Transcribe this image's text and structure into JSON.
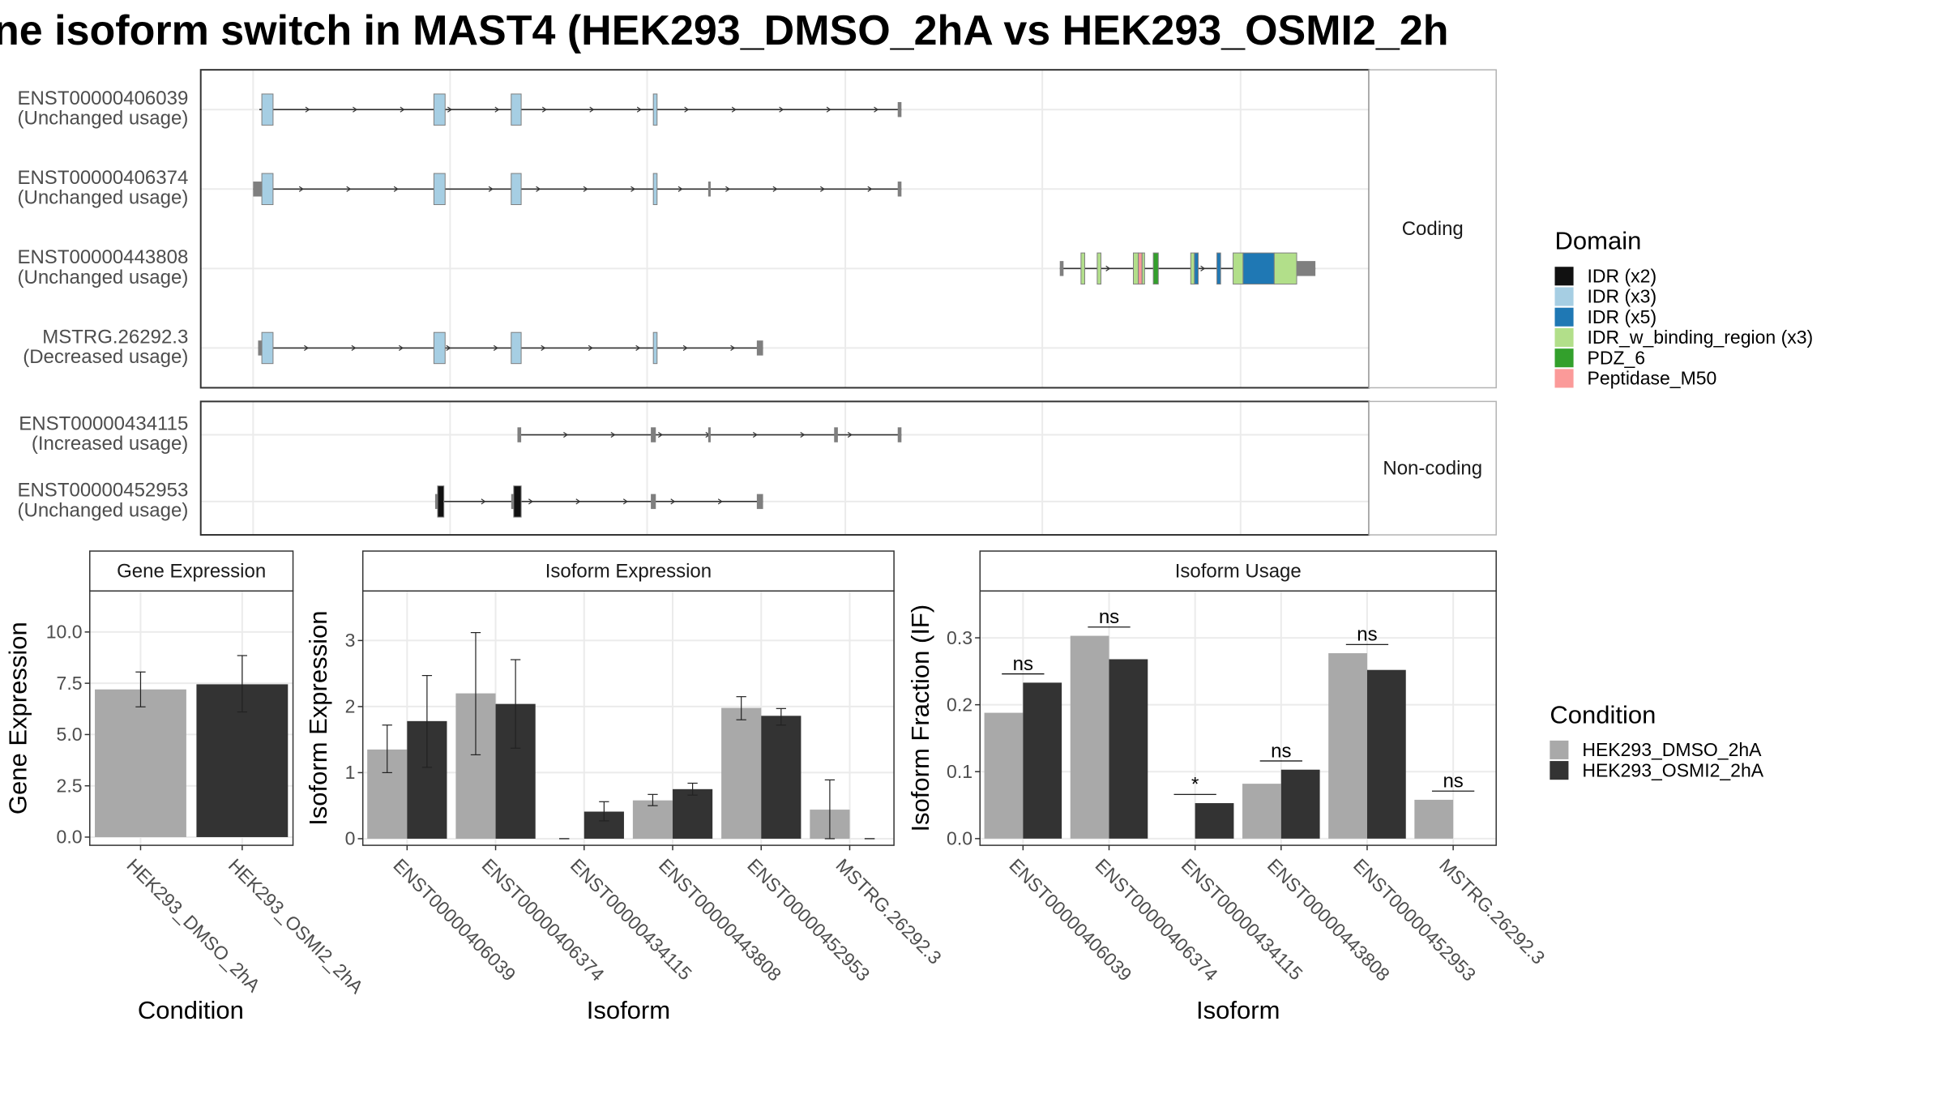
{
  "title": "ne isoform switch in MAST4 (HEK293_DMSO_2hA vs HEK293_OSMI2_2h",
  "colors": {
    "DMSO": "#a9a9a9",
    "OSMI2": "#333333",
    "utr": "#7f7f7f",
    "IDR (x2)": "#111111",
    "IDR (x3)": "#a6cee3",
    "IDR (x5)": "#1f78b4",
    "IDR_w_binding_region (x3)": "#b2df8a",
    "PDZ_6": "#33a02c",
    "Peptidase_M50": "#fb9a99"
  },
  "chart_data": [
    {
      "type": "gene-structure",
      "panel_labels": {
        "coding": "Coding",
        "noncoding": "Non-coding"
      },
      "legend_title": "Domain",
      "domains": [
        "IDR (x2)",
        "IDR (x3)",
        "IDR (x5)",
        "IDR_w_binding_region (x3)",
        "PDZ_6",
        "Peptidase_M50"
      ],
      "transcripts": [
        {
          "id": "ENST00000406039",
          "usage": "(Unchanged usage)",
          "group": "coding",
          "span": [
            208,
            723
          ],
          "exons": [
            [
              210,
              219,
              "IDR (x3)"
            ],
            [
              348,
              357,
              "IDR (x3)"
            ],
            [
              410,
              418,
              "IDR (x3)"
            ],
            [
              524,
              527,
              "IDR (x3)"
            ],
            [
              720,
              723,
              "utr"
            ]
          ]
        },
        {
          "id": "ENST00000406374",
          "usage": "(Unchanged usage)",
          "group": "coding",
          "span": [
            203,
            723
          ],
          "exons": [
            [
              203,
              210,
              "utr"
            ],
            [
              210,
              219,
              "IDR (x3)"
            ],
            [
              348,
              357,
              "IDR (x3)"
            ],
            [
              410,
              418,
              "IDR (x3)"
            ],
            [
              524,
              527,
              "IDR (x3)"
            ],
            [
              568,
              570,
              "utr"
            ],
            [
              720,
              723,
              "utr"
            ]
          ]
        },
        {
          "id": "ENST00000443808",
          "usage": "(Unchanged usage)",
          "group": "coding",
          "span": [
            850,
            1055
          ],
          "exons": [
            [
              850,
              853,
              "utr"
            ],
            [
              867,
              870,
              "IDR_w_binding_region (x3)"
            ],
            [
              880,
              883,
              "IDR_w_binding_region (x3)"
            ],
            [
              909,
              913,
              "IDR_w_binding_region (x3)"
            ],
            [
              913,
              916,
              "Peptidase_M50"
            ],
            [
              916,
              918,
              "IDR_w_binding_region (x3)"
            ],
            [
              925,
              929,
              "PDZ_6"
            ],
            [
              955,
              958,
              "IDR_w_binding_region (x3)"
            ],
            [
              958,
              961,
              "IDR (x5)"
            ],
            [
              976,
              979,
              "IDR (x5)"
            ],
            [
              989,
              997,
              "IDR_w_binding_region (x3)"
            ],
            [
              997,
              1022,
              "IDR (x5)"
            ],
            [
              1022,
              1040,
              "IDR_w_binding_region (x3)"
            ],
            [
              1040,
              1055,
              "utr"
            ]
          ]
        },
        {
          "id": "MSTRG.26292.3",
          "usage": "(Decreased usage)",
          "group": "coding",
          "span": [
            207,
            612
          ],
          "exons": [
            [
              207,
              210,
              "utr"
            ],
            [
              210,
              219,
              "IDR (x3)"
            ],
            [
              348,
              357,
              "IDR (x3)"
            ],
            [
              410,
              418,
              "IDR (x3)"
            ],
            [
              524,
              527,
              "IDR (x3)"
            ],
            [
              607,
              612,
              "utr"
            ]
          ]
        },
        {
          "id": "ENST00000434115",
          "usage": "(Increased usage)",
          "group": "noncoding",
          "span": [
            415,
            723
          ],
          "exons": [
            [
              415,
              418,
              "utr"
            ],
            [
              522,
              526,
              "utr"
            ],
            [
              568,
              570,
              "utr"
            ],
            [
              669,
              672,
              "utr"
            ],
            [
              720,
              723,
              "utr"
            ]
          ]
        },
        {
          "id": "ENST00000452953",
          "usage": "(Unchanged usage)",
          "group": "noncoding",
          "span": [
            349,
            612
          ],
          "exons": [
            [
              349,
              351,
              "utr"
            ],
            [
              351,
              356,
              "IDR (x2)"
            ],
            [
              410,
              412,
              "utr"
            ],
            [
              412,
              418,
              "IDR (x2)"
            ],
            [
              522,
              526,
              "utr"
            ],
            [
              607,
              612,
              "utr"
            ]
          ]
        }
      ]
    },
    {
      "type": "bar",
      "title": "Gene Expression",
      "xlabel": "Condition",
      "ylabel": "Gene Expression",
      "ylim": [
        -0.4,
        12
      ],
      "yticks": [
        "0.0",
        "2.5",
        "5.0",
        "7.5",
        "10.0"
      ],
      "categories": [
        "HEK293_DMSO_2hA",
        "HEK293_OSMI2_2hA"
      ],
      "values": [
        7.2,
        7.45
      ],
      "errors": [
        [
          6.35,
          8.05
        ],
        [
          6.1,
          8.85
        ]
      ]
    },
    {
      "type": "bar",
      "title": "Isoform Expression",
      "xlabel": "Isoform",
      "ylabel": "Isoform Expression",
      "ylim": [
        -0.1,
        3.75
      ],
      "yticks": [
        "0",
        "1",
        "2",
        "3"
      ],
      "categories": [
        "ENST00000406039",
        "ENST00000406374",
        "ENST00000434115",
        "ENST00000443808",
        "ENST00000452953",
        "MSTRG.26292.3"
      ],
      "series": [
        {
          "name": "HEK293_DMSO_2hA",
          "values": [
            1.35,
            2.2,
            0.0,
            0.58,
            1.98,
            0.44
          ],
          "errors": [
            [
              1.0,
              1.72
            ],
            [
              1.27,
              3.12
            ],
            [
              0.0,
              0.0
            ],
            [
              0.5,
              0.67
            ],
            [
              1.8,
              2.15
            ],
            [
              0.0,
              0.89
            ]
          ]
        },
        {
          "name": "HEK293_OSMI2_2hA",
          "values": [
            1.78,
            2.04,
            0.41,
            0.75,
            1.86,
            0.0
          ],
          "errors": [
            [
              1.08,
              2.47
            ],
            [
              1.37,
              2.71
            ],
            [
              0.27,
              0.56
            ],
            [
              0.66,
              0.84
            ],
            [
              1.72,
              1.97
            ],
            [
              0.0,
              0.0
            ]
          ]
        }
      ]
    },
    {
      "type": "bar",
      "title": "Isoform Usage",
      "xlabel": "Isoform",
      "ylabel": "Isoform Fraction (IF)",
      "ylim": [
        -0.01,
        0.37
      ],
      "yticks": [
        "0.0",
        "0.1",
        "0.2",
        "0.3"
      ],
      "categories": [
        "ENST00000406039",
        "ENST00000406374",
        "ENST00000434115",
        "ENST00000443808",
        "ENST00000452953",
        "MSTRG.26292.3"
      ],
      "series": [
        {
          "name": "HEK293_DMSO_2hA",
          "values": [
            0.188,
            0.303,
            0.0,
            0.082,
            0.277,
            0.058
          ]
        },
        {
          "name": "HEK293_OSMI2_2hA",
          "values": [
            0.233,
            0.268,
            0.053,
            0.103,
            0.252,
            0.0
          ]
        }
      ],
      "significance": [
        "ns",
        "ns",
        "*",
        "ns",
        "ns",
        "ns"
      ]
    }
  ],
  "condition_legend": {
    "title": "Condition",
    "items": [
      "HEK293_DMSO_2hA",
      "HEK293_OSMI2_2hA"
    ]
  }
}
